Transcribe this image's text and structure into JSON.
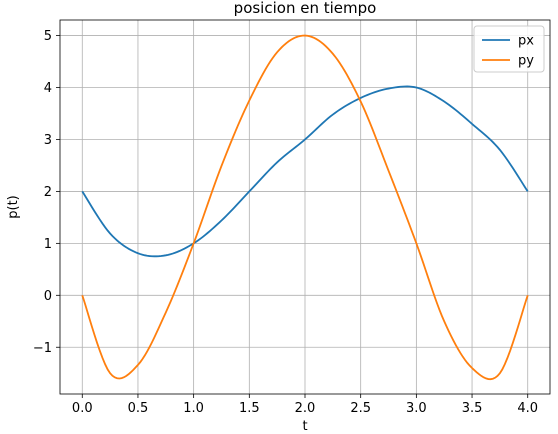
{
  "chart_data": {
    "type": "line",
    "title": "posicion en tiempo",
    "xlabel": "t",
    "ylabel": "p(t)",
    "xlim": [
      -0.2,
      4.2
    ],
    "ylim": [
      -1.9,
      5.3
    ],
    "x_ticks": [
      0.0,
      0.5,
      1.0,
      1.5,
      2.0,
      2.5,
      3.0,
      3.5,
      4.0
    ],
    "x_tick_labels": [
      "0.0",
      "0.5",
      "1.0",
      "1.5",
      "2.0",
      "2.5",
      "3.0",
      "3.5",
      "4.0"
    ],
    "y_ticks": [
      -1,
      0,
      1,
      2,
      3,
      4,
      5
    ],
    "y_tick_labels": [
      "−1",
      "0",
      "1",
      "2",
      "3",
      "4",
      "5"
    ],
    "grid": true,
    "legend_position": "top-right",
    "x": [
      0.0,
      0.25,
      0.5,
      0.75,
      1.0,
      1.25,
      1.5,
      1.75,
      2.0,
      2.25,
      2.5,
      2.75,
      3.0,
      3.25,
      3.5,
      3.75,
      4.0
    ],
    "series": [
      {
        "name": "px",
        "color": "#1f77b4",
        "values": [
          2.0,
          1.19,
          0.81,
          0.77,
          1.0,
          1.44,
          2.0,
          2.56,
          3.0,
          3.48,
          3.8,
          3.98,
          4.0,
          3.73,
          3.3,
          2.8,
          2.0
        ]
      },
      {
        "name": "py",
        "color": "#ff7f0e",
        "values": [
          0.0,
          -1.5,
          -1.34,
          -0.33,
          1.0,
          2.49,
          3.75,
          4.68,
          5.0,
          4.65,
          3.73,
          2.4,
          1.0,
          -0.5,
          -1.4,
          -1.5,
          0.0
        ]
      }
    ]
  }
}
